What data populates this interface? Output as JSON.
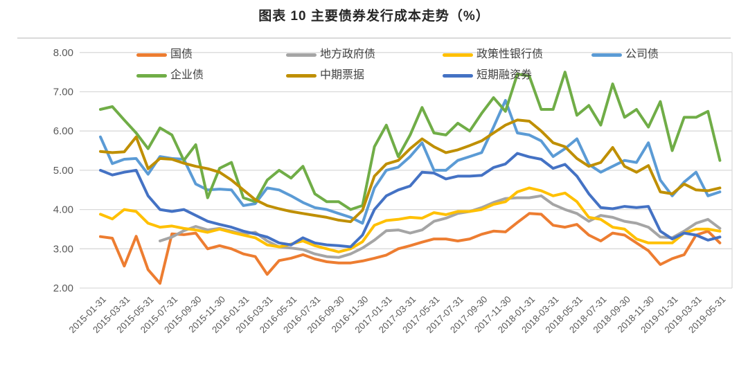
{
  "title": "图表 10 主要债券发行成本走势（%）",
  "colors": {
    "grid": "#D9D9D9",
    "plot_border": "#D9D9D9",
    "separator": "#D9D9D9",
    "axis_text": "#595959",
    "legend_text": "#404040",
    "title_text": "#262626",
    "background": "#FFFFFF"
  },
  "chart_data": {
    "type": "line",
    "title": "图表 10 主要债券发行成本走势（%）",
    "ylabel": "",
    "xlabel": "",
    "ylim": [
      2,
      8
    ],
    "yticks": [
      "2.00",
      "3.00",
      "4.00",
      "5.00",
      "6.00",
      "7.00",
      "8.00"
    ],
    "grid": "horizontal",
    "legend_position": "top-two-rows",
    "n_points": 53,
    "points_per_label": 2,
    "x_tick_labels": [
      "2015-01-31",
      "2015-03-31",
      "2015-05-31",
      "2015-07-31",
      "2015-09-30",
      "2015-11-30",
      "2016-01-31",
      "2016-03-31",
      "2016-05-31",
      "2016-07-31",
      "2016-09-30",
      "2016-11-30",
      "2017-01-31",
      "2017-03-31",
      "2017-05-31",
      "2017-07-31",
      "2017-09-30",
      "2017-11-30",
      "2018-01-31",
      "2018-03-31",
      "2018-05-31",
      "2018-07-31",
      "2018-09-30",
      "2018-11-30",
      "2019-01-31",
      "2019-03-31",
      "2019-05-31"
    ],
    "series": [
      {
        "key": "treasury-bond",
        "name": "国债",
        "color": "#ED7D31",
        "values": [
          3.31,
          3.27,
          2.56,
          3.32,
          2.47,
          2.12,
          3.38,
          3.36,
          3.4,
          3.0,
          3.08,
          3.0,
          2.87,
          2.8,
          2.35,
          2.7,
          2.76,
          2.85,
          2.74,
          2.67,
          2.64,
          2.64,
          2.69,
          2.76,
          2.84,
          3.0,
          3.08,
          3.17,
          3.25,
          3.25,
          3.2,
          3.25,
          3.37,
          3.45,
          3.43,
          3.67,
          3.9,
          3.88,
          3.6,
          3.55,
          3.62,
          3.35,
          3.2,
          3.4,
          3.35,
          3.15,
          2.95,
          2.6,
          2.75,
          2.85,
          3.35,
          3.45,
          3.15
        ]
      },
      {
        "key": "local-government-bond",
        "name": "地方政府债",
        "color": "#A5A5A5",
        "values": [
          null,
          null,
          null,
          null,
          null,
          3.2,
          3.3,
          3.46,
          3.57,
          3.48,
          3.52,
          3.45,
          3.38,
          3.42,
          3.2,
          3.05,
          3.02,
          2.98,
          2.87,
          2.8,
          2.78,
          2.87,
          3.02,
          3.22,
          3.46,
          3.48,
          3.4,
          3.48,
          3.7,
          3.78,
          3.9,
          3.95,
          4.05,
          4.18,
          4.28,
          4.3,
          4.3,
          4.35,
          4.13,
          4.0,
          3.9,
          3.7,
          3.85,
          3.8,
          3.7,
          3.65,
          3.55,
          3.3,
          3.28,
          3.45,
          3.65,
          3.75,
          3.52
        ]
      },
      {
        "key": "policy-bank-bond",
        "name": "政策性银行债",
        "color": "#FFC000",
        "values": [
          3.88,
          3.76,
          4.0,
          3.95,
          3.65,
          3.55,
          3.58,
          3.52,
          3.48,
          3.42,
          3.5,
          3.42,
          3.35,
          3.28,
          3.1,
          3.05,
          3.12,
          3.2,
          3.08,
          3.0,
          2.92,
          3.0,
          3.18,
          3.6,
          3.72,
          3.75,
          3.8,
          3.78,
          3.92,
          3.87,
          3.95,
          3.95,
          4.0,
          4.13,
          4.2,
          4.45,
          4.55,
          4.48,
          4.35,
          4.42,
          4.2,
          3.8,
          3.75,
          3.55,
          3.5,
          3.25,
          3.15,
          3.15,
          3.15,
          3.4,
          3.5,
          3.5,
          3.45
        ]
      },
      {
        "key": "corporate-bond",
        "name": "公司债",
        "color": "#5B9BD5",
        "values": [
          5.85,
          5.17,
          5.28,
          5.3,
          4.9,
          5.35,
          5.3,
          5.28,
          4.65,
          4.5,
          4.52,
          4.5,
          4.1,
          4.15,
          4.55,
          4.5,
          4.35,
          4.18,
          4.05,
          4.0,
          3.9,
          3.8,
          3.65,
          4.55,
          5.0,
          5.08,
          5.35,
          5.7,
          5.0,
          5.0,
          5.25,
          5.35,
          5.45,
          6.1,
          6.78,
          5.95,
          5.9,
          5.75,
          5.35,
          5.55,
          5.8,
          5.15,
          4.95,
          5.1,
          5.25,
          5.2,
          5.7,
          4.75,
          4.35,
          4.7,
          4.95,
          4.35,
          4.45
        ]
      },
      {
        "key": "enterprise-bond",
        "name": "企业债",
        "color": "#70AD47",
        "values": [
          6.55,
          6.62,
          6.28,
          5.95,
          5.55,
          6.08,
          5.9,
          5.25,
          5.65,
          4.3,
          5.05,
          5.2,
          4.3,
          4.2,
          4.75,
          5.0,
          4.8,
          5.1,
          4.4,
          4.2,
          4.2,
          4.0,
          4.1,
          5.6,
          6.15,
          5.35,
          5.9,
          6.6,
          5.95,
          5.9,
          6.2,
          6.0,
          6.45,
          6.85,
          6.5,
          7.45,
          7.4,
          6.55,
          6.55,
          7.5,
          6.4,
          6.65,
          6.15,
          7.2,
          6.35,
          6.55,
          6.1,
          6.75,
          5.5,
          6.35,
          6.35,
          6.5,
          5.25
        ]
      },
      {
        "key": "medium-term-note",
        "name": "中期票据",
        "color": "#BF8F00",
        "values": [
          5.48,
          5.45,
          5.47,
          5.85,
          5.04,
          5.3,
          5.28,
          5.18,
          5.1,
          5.04,
          4.95,
          4.75,
          4.5,
          4.25,
          4.1,
          4.02,
          3.95,
          3.9,
          3.85,
          3.8,
          3.73,
          3.69,
          3.98,
          4.85,
          5.16,
          5.25,
          5.55,
          5.8,
          5.6,
          5.45,
          5.52,
          5.63,
          5.75,
          5.95,
          6.15,
          6.28,
          6.25,
          6.0,
          5.7,
          5.6,
          5.3,
          5.1,
          5.2,
          5.58,
          5.1,
          4.95,
          5.12,
          4.45,
          4.4,
          4.65,
          4.5,
          4.48,
          4.55
        ]
      },
      {
        "key": "short-term-financing-bill",
        "name": "短期融资券",
        "color": "#4472C4",
        "values": [
          5.0,
          4.88,
          4.95,
          5.0,
          4.35,
          4.0,
          3.95,
          4.0,
          3.85,
          3.7,
          3.62,
          3.55,
          3.45,
          3.38,
          3.3,
          3.15,
          3.1,
          3.28,
          3.15,
          3.1,
          3.08,
          3.05,
          3.35,
          4.0,
          4.35,
          4.5,
          4.6,
          4.95,
          4.93,
          4.78,
          4.85,
          4.85,
          4.87,
          5.07,
          5.16,
          5.43,
          5.34,
          5.28,
          5.05,
          5.15,
          4.85,
          4.4,
          4.05,
          4.02,
          4.08,
          4.05,
          4.08,
          3.45,
          3.25,
          3.4,
          3.35,
          3.22,
          3.3
        ]
      }
    ]
  }
}
